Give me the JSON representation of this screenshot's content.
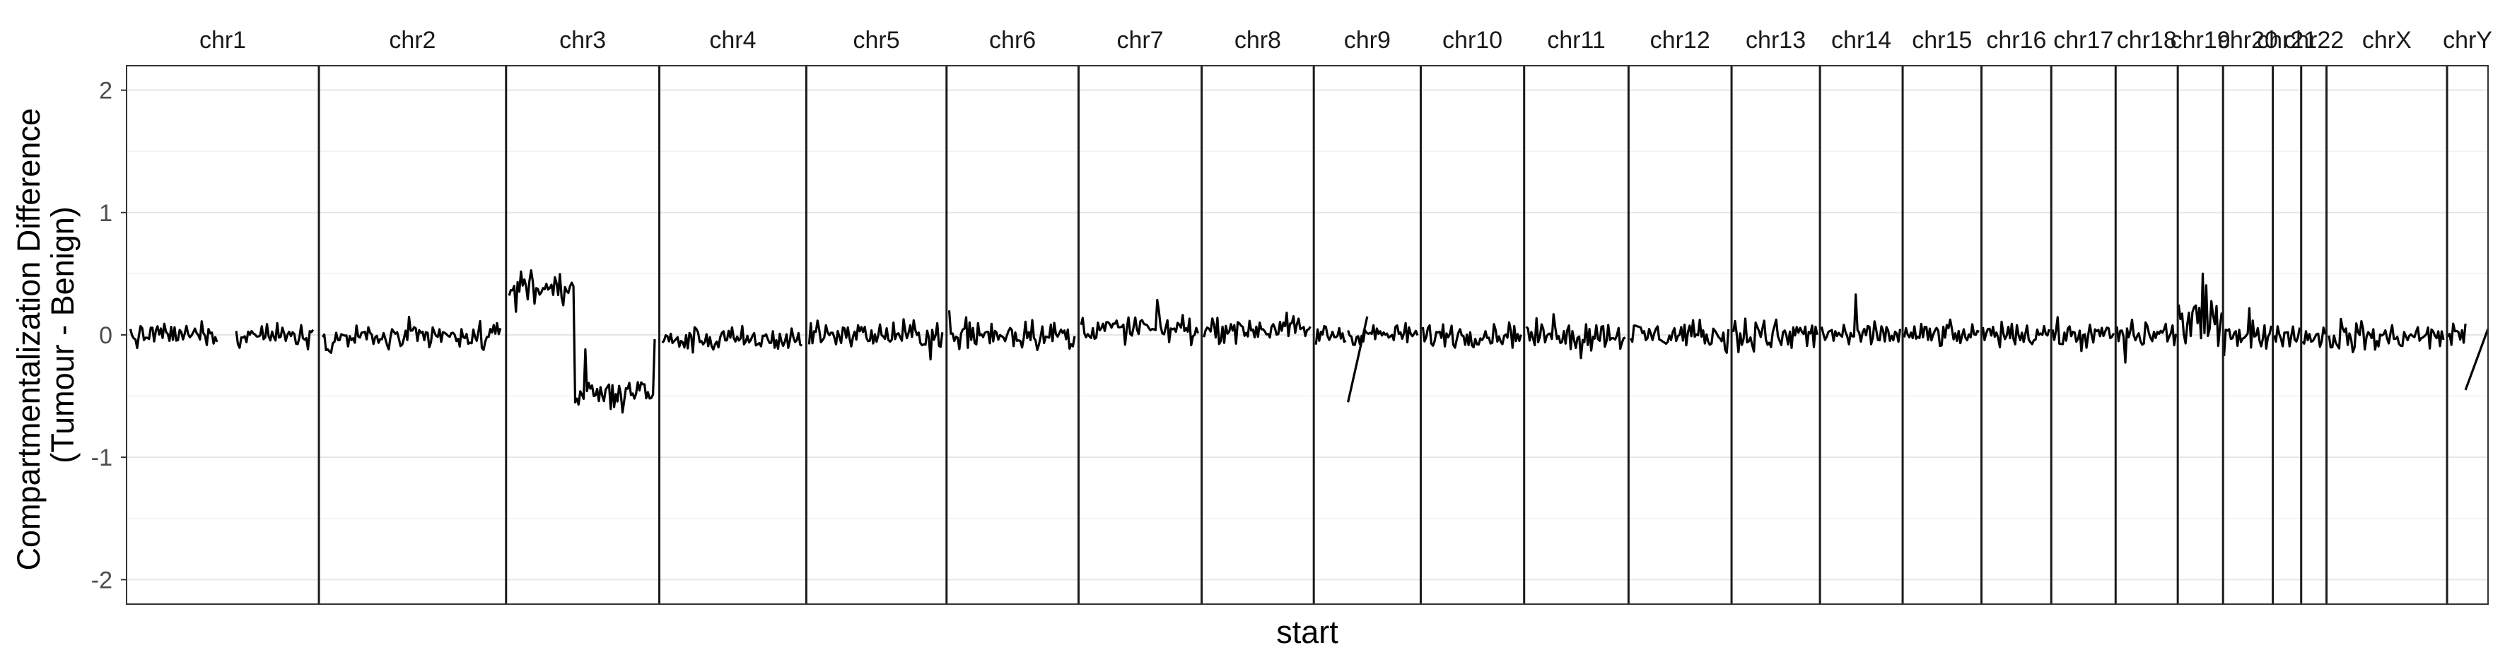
{
  "chart_data": {
    "type": "line",
    "xlabel": "start",
    "ylabel_lines": [
      "Compartmentalization Difference",
      "(Tumour - Benign)"
    ],
    "ylim": [
      -2.2,
      2.2
    ],
    "yticks": [
      -2,
      -1,
      0,
      1,
      2
    ],
    "grid": true,
    "facets": [
      {
        "label": "chr1",
        "span": 248.9,
        "level": 0.0,
        "spread": 0.09,
        "segments": [
          [
            0.02,
            0.47
          ],
          [
            0.57,
            0.97
          ]
        ]
      },
      {
        "label": "chr2",
        "span": 242.2,
        "level": -0.02,
        "spread": 0.1,
        "segments": [
          [
            0.02,
            0.97
          ]
        ]
      },
      {
        "label": "chr3",
        "span": 198.3,
        "level": -0.1,
        "spread": 0.12,
        "segments": [
          [
            0.02,
            0.97
          ]
        ],
        "shifts": [
          {
            "from": 0.02,
            "to": 0.45,
            "level": 0.4
          },
          {
            "from": 0.45,
            "to": 0.97,
            "level": -0.48
          }
        ]
      },
      {
        "label": "chr4",
        "span": 190.2,
        "level": -0.04,
        "spread": 0.1,
        "segments": [
          [
            0.02,
            0.97
          ]
        ]
      },
      {
        "label": "chr5",
        "span": 181.5,
        "level": 0.0,
        "spread": 0.1,
        "segments": [
          [
            0.02,
            0.97
          ]
        ]
      },
      {
        "label": "chr6",
        "span": 170.8,
        "level": 0.0,
        "spread": 0.1,
        "segments": [
          [
            0.02,
            0.97
          ]
        ]
      },
      {
        "label": "chr7",
        "span": 159.3,
        "level": 0.05,
        "spread": 0.11,
        "segments": [
          [
            0.02,
            0.97
          ]
        ]
      },
      {
        "label": "chr8",
        "span": 145.1,
        "level": 0.05,
        "spread": 0.1,
        "segments": [
          [
            0.02,
            0.97
          ]
        ]
      },
      {
        "label": "chr9",
        "span": 138.4,
        "level": 0.0,
        "spread": 0.08,
        "segments": [
          [
            0.02,
            0.3
          ],
          [
            0.32,
            0.97
          ]
        ],
        "bridge": {
          "from": 0.32,
          "to": 0.5,
          "start": -0.55,
          "end": 0.15
        }
      },
      {
        "label": "chr10",
        "span": 133.8,
        "level": 0.0,
        "spread": 0.1,
        "segments": [
          [
            0.02,
            0.97
          ]
        ]
      },
      {
        "label": "chr11",
        "span": 135.1,
        "level": 0.0,
        "spread": 0.1,
        "segments": [
          [
            0.02,
            0.97
          ]
        ]
      },
      {
        "label": "chr12",
        "span": 133.3,
        "level": 0.0,
        "spread": 0.1,
        "segments": [
          [
            0.02,
            0.97
          ]
        ]
      },
      {
        "label": "chr13",
        "span": 114.4,
        "level": 0.0,
        "spread": 0.12,
        "segments": [
          [
            0.02,
            0.97
          ]
        ]
      },
      {
        "label": "chr14",
        "span": 107.0,
        "level": 0.0,
        "spread": 0.1,
        "segments": [
          [
            0.02,
            0.97
          ]
        ]
      },
      {
        "label": "chr15",
        "span": 102.0,
        "level": 0.0,
        "spread": 0.09,
        "segments": [
          [
            0.02,
            0.97
          ]
        ]
      },
      {
        "label": "chr16",
        "span": 90.3,
        "level": 0.0,
        "spread": 0.09,
        "segments": [
          [
            0.02,
            0.97
          ]
        ]
      },
      {
        "label": "chr17",
        "span": 83.3,
        "level": 0.0,
        "spread": 0.1,
        "segments": [
          [
            0.02,
            0.97
          ]
        ]
      },
      {
        "label": "chr18",
        "span": 80.4,
        "level": 0.0,
        "spread": 0.1,
        "segments": [
          [
            0.02,
            0.97
          ]
        ]
      },
      {
        "label": "chr19",
        "span": 58.6,
        "level": 0.1,
        "spread": 0.2,
        "segments": [
          [
            0.02,
            0.97
          ]
        ]
      },
      {
        "label": "chr20",
        "span": 64.4,
        "level": 0.0,
        "spread": 0.12,
        "segments": [
          [
            0.02,
            0.97
          ]
        ]
      },
      {
        "label": "chr21",
        "span": 36.7,
        "level": 0.0,
        "spread": 0.09,
        "segments": [
          [
            0.05,
            0.95
          ]
        ]
      },
      {
        "label": "chr22",
        "span": 32.8,
        "level": 0.0,
        "spread": 0.09,
        "segments": [
          [
            0.05,
            0.95
          ]
        ]
      },
      {
        "label": "chrX",
        "span": 156.0,
        "level": -0.02,
        "spread": 0.1,
        "segments": [
          [
            0.02,
            0.97
          ]
        ]
      },
      {
        "label": "chrY",
        "span": 53.0,
        "level": 0.0,
        "spread": 0.15,
        "segments": [
          [
            0.02,
            0.45
          ]
        ],
        "bridge": {
          "from": 0.45,
          "to": 1.0,
          "start": -0.45,
          "end": 0.05
        }
      }
    ]
  }
}
